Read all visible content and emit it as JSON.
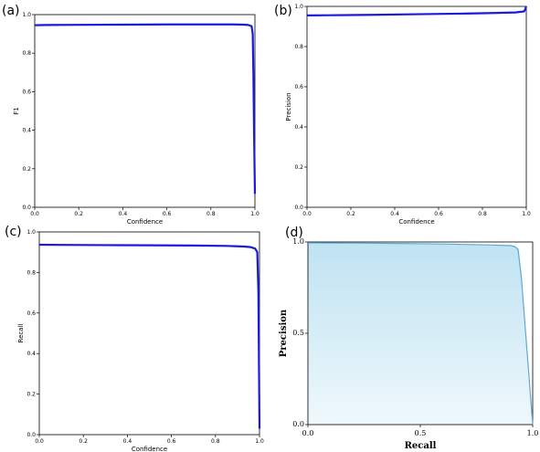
{
  "colors": {
    "line": "#1a1adb",
    "pr_fill": "#bfe3f2",
    "pr_line": "#5fa9d1"
  },
  "chart_data": [
    {
      "panel": "(a)",
      "type": "line",
      "xlabel": "Confidence",
      "ylabel": "F1",
      "xlim": [
        0,
        1
      ],
      "ylim": [
        0,
        1
      ],
      "xticks": [
        "0.0",
        "0.2",
        "0.4",
        "0.6",
        "0.8",
        "1.0"
      ],
      "yticks": [
        "0.0",
        "0.2",
        "0.4",
        "0.6",
        "0.8",
        "1.0"
      ],
      "series": [
        {
          "x": [
            0,
            0.05,
            0.2,
            0.4,
            0.6,
            0.8,
            0.9,
            0.95,
            0.97,
            0.985,
            0.99,
            0.993,
            0.996,
            1.0
          ],
          "y": [
            0.945,
            0.946,
            0.947,
            0.948,
            0.949,
            0.949,
            0.949,
            0.948,
            0.946,
            0.94,
            0.9,
            0.7,
            0.4,
            0.07
          ]
        }
      ]
    },
    {
      "panel": "(b)",
      "type": "line",
      "xlabel": "Confidence",
      "ylabel": "Precision",
      "xlim": [
        0,
        1
      ],
      "ylim": [
        0,
        1
      ],
      "xticks": [
        "0.0",
        "0.2",
        "0.4",
        "0.6",
        "0.8",
        "1.0"
      ],
      "yticks": [
        "0.0",
        "0.2",
        "0.4",
        "0.6",
        "0.8",
        "1.0"
      ],
      "series": [
        {
          "x": [
            0,
            0.1,
            0.3,
            0.5,
            0.7,
            0.85,
            0.95,
            0.99,
            0.995,
            1.0
          ],
          "y": [
            0.955,
            0.956,
            0.958,
            0.961,
            0.964,
            0.967,
            0.97,
            0.975,
            0.985,
            1.0
          ]
        }
      ]
    },
    {
      "panel": "(c)",
      "type": "line",
      "xlabel": "Confidence",
      "ylabel": "Recall",
      "xlim": [
        0,
        1
      ],
      "ylim": [
        0,
        1
      ],
      "xticks": [
        "0.0",
        "0.2",
        "0.4",
        "0.6",
        "0.8",
        "1.0"
      ],
      "yticks": [
        "0.0",
        "0.2",
        "0.4",
        "0.6",
        "0.8",
        "1.0"
      ],
      "series": [
        {
          "x": [
            0,
            0.1,
            0.3,
            0.5,
            0.7,
            0.85,
            0.93,
            0.96,
            0.98,
            0.99,
            0.995,
            0.998,
            1.0
          ],
          "y": [
            0.937,
            0.936,
            0.935,
            0.934,
            0.933,
            0.931,
            0.928,
            0.925,
            0.918,
            0.9,
            0.7,
            0.3,
            0.03
          ]
        }
      ]
    },
    {
      "panel": "(d)",
      "type": "area",
      "xlabel": "Recall",
      "ylabel": "Precision",
      "xlim": [
        0,
        1
      ],
      "ylim": [
        0,
        1
      ],
      "xticks": [
        "0.0",
        "0.5",
        "1.0"
      ],
      "yticks": [
        "0.0",
        "0.5",
        "1.0"
      ],
      "series": [
        {
          "x": [
            0,
            0.2,
            0.4,
            0.6,
            0.8,
            0.9,
            0.92,
            0.935,
            0.95,
            1.0
          ],
          "y": [
            0.995,
            0.994,
            0.992,
            0.989,
            0.984,
            0.98,
            0.975,
            0.96,
            0.8,
            0.0
          ]
        }
      ]
    }
  ]
}
